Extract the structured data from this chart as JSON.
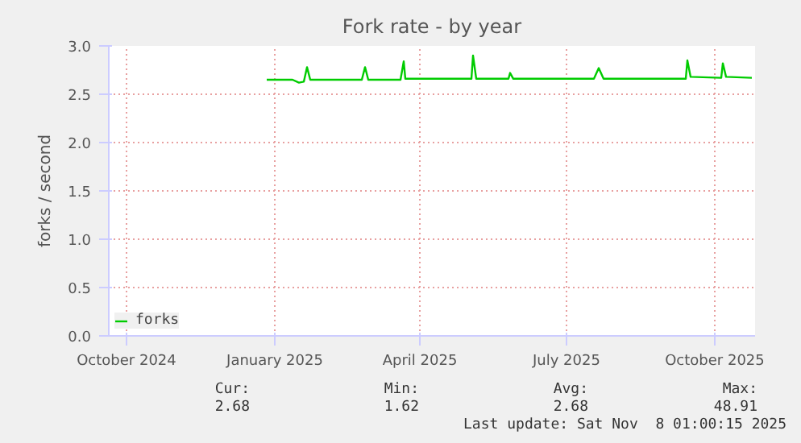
{
  "chart_data": {
    "type": "line",
    "title": "Fork rate - by year",
    "ylabel": "forks / second",
    "x": [
      "2024-12-27",
      "2025-01-12",
      "2025-01-16",
      "2025-01-19",
      "2025-01-21",
      "2025-01-23",
      "2025-02-24",
      "2025-02-26",
      "2025-02-28",
      "2025-03-20",
      "2025-03-22",
      "2025-03-23",
      "2025-05-03",
      "2025-05-04",
      "2025-05-06",
      "2025-05-26",
      "2025-05-27",
      "2025-05-29",
      "2025-07-18",
      "2025-07-21",
      "2025-07-24",
      "2025-09-13",
      "2025-09-14",
      "2025-09-16",
      "2025-10-05",
      "2025-10-06",
      "2025-10-08",
      "2025-10-24"
    ],
    "series": [
      {
        "name": "forks",
        "color": "#00cc00",
        "values": [
          2.65,
          2.65,
          2.62,
          2.63,
          2.78,
          2.65,
          2.65,
          2.78,
          2.65,
          2.65,
          2.84,
          2.66,
          2.66,
          2.9,
          2.66,
          2.66,
          2.72,
          2.66,
          2.66,
          2.77,
          2.66,
          2.66,
          2.85,
          2.68,
          2.67,
          2.82,
          2.68,
          2.67
        ]
      }
    ],
    "xlim": [
      "2024-09-20",
      "2025-10-26"
    ],
    "xticks": [
      {
        "value": "2024-10-01",
        "label": "October 2024"
      },
      {
        "value": "2025-01-01",
        "label": "January 2025"
      },
      {
        "value": "2025-04-01",
        "label": "April 2025"
      },
      {
        "value": "2025-07-01",
        "label": "July 2025"
      },
      {
        "value": "2025-10-01",
        "label": "October 2025"
      }
    ],
    "ylim": [
      0,
      3
    ],
    "yticks": [
      {
        "value": 0,
        "label": "0.0"
      },
      {
        "value": 0.5,
        "label": "0.5"
      },
      {
        "value": 1,
        "label": "1.0"
      },
      {
        "value": 1.5,
        "label": "1.5"
      },
      {
        "value": 2,
        "label": "2.0"
      },
      {
        "value": 2.5,
        "label": "2.5"
      },
      {
        "value": 3,
        "label": "3.0"
      }
    ],
    "grid": true,
    "legend": "bottom left",
    "marker": "none",
    "line_style": "solid",
    "annotations": [
      "Cur:",
      "Min:",
      "Avg:",
      "Max:",
      "2.68",
      "1.62",
      "2.68",
      "48.91",
      "Last update: Sat Nov  8 01:00:15 2025"
    ]
  }
}
